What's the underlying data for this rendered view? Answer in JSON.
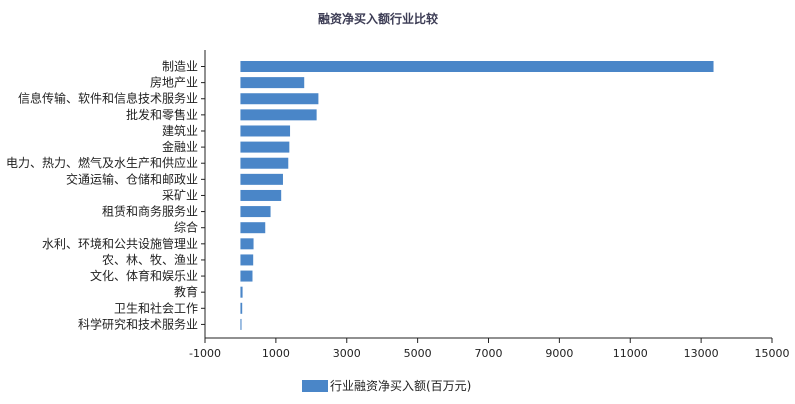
{
  "chart_data": {
    "type": "bar",
    "orientation": "horizontal",
    "title": "融资净买入额行业比较",
    "categories": [
      "制造业",
      "房地产业",
      "信息传输、软件和信息技术服务业",
      "批发和零售业",
      "建筑业",
      "金融业",
      "电力、热力、燃气及水生产和供应业",
      "交通运输、仓储和邮政业",
      "采矿业",
      "租赁和商务服务业",
      "综合",
      "水利、环境和公共设施管理业",
      "农、林、牧、渔业",
      "文化、体育和娱乐业",
      "教育",
      "卫生和社会工作",
      "科学研究和技术服务业"
    ],
    "series": [
      {
        "name": "行业融资净买入额(百万元)",
        "color": "#4a86c8",
        "values": [
          13350,
          1800,
          2200,
          2150,
          1400,
          1380,
          1350,
          1200,
          1150,
          850,
          700,
          370,
          360,
          340,
          60,
          50,
          30
        ]
      }
    ],
    "xlim": [
      -1000,
      15000
    ],
    "xticks": [
      "-1000",
      "1000",
      "3000",
      "5000",
      "7000",
      "9000",
      "11000",
      "13000",
      "15000"
    ],
    "grid": false,
    "legend_position": "bottom"
  }
}
